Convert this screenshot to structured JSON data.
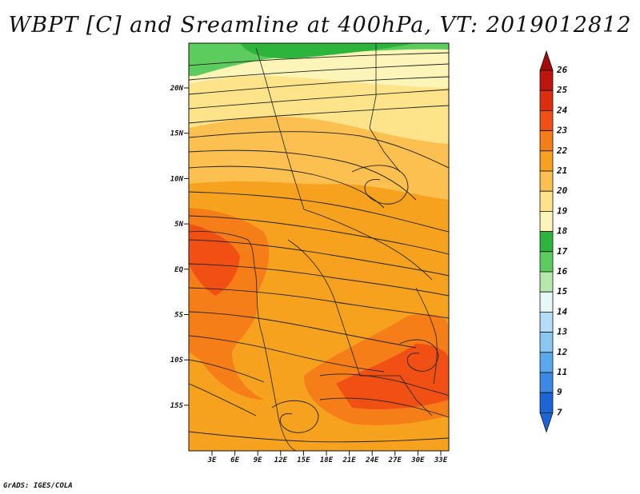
{
  "title": "WBPT [C] and Sreamline at 400hPa, VT: 2019012812",
  "credit": "GrADS: IGES/COLA",
  "lat_labels": [
    "20N",
    "15N",
    "10N",
    "5N",
    "EQ",
    "5S",
    "10S",
    "15S"
  ],
  "lon_labels": [
    "3E",
    "6E",
    "9E",
    "12E",
    "15E",
    "18E",
    "21E",
    "24E",
    "27E",
    "30E",
    "33E"
  ],
  "colorbar": {
    "labels": [
      "26",
      "25",
      "24",
      "23",
      "22",
      "21",
      "20",
      "19",
      "18",
      "17",
      "16",
      "15",
      "14",
      "13",
      "12",
      "11",
      "9",
      "7"
    ],
    "colors": [
      "#a50a0a",
      "#c0140f",
      "#dc2d0f",
      "#f05014",
      "#f57e18",
      "#f9a020",
      "#fcc050",
      "#fde48a",
      "#fdf5b8",
      "#2db43c",
      "#5dcc5f",
      "#b6e8ab",
      "#e6f7f5",
      "#b4ddf8",
      "#8cc7f4",
      "#5aa9ee",
      "#3b89e6",
      "#1c65d7"
    ]
  }
}
